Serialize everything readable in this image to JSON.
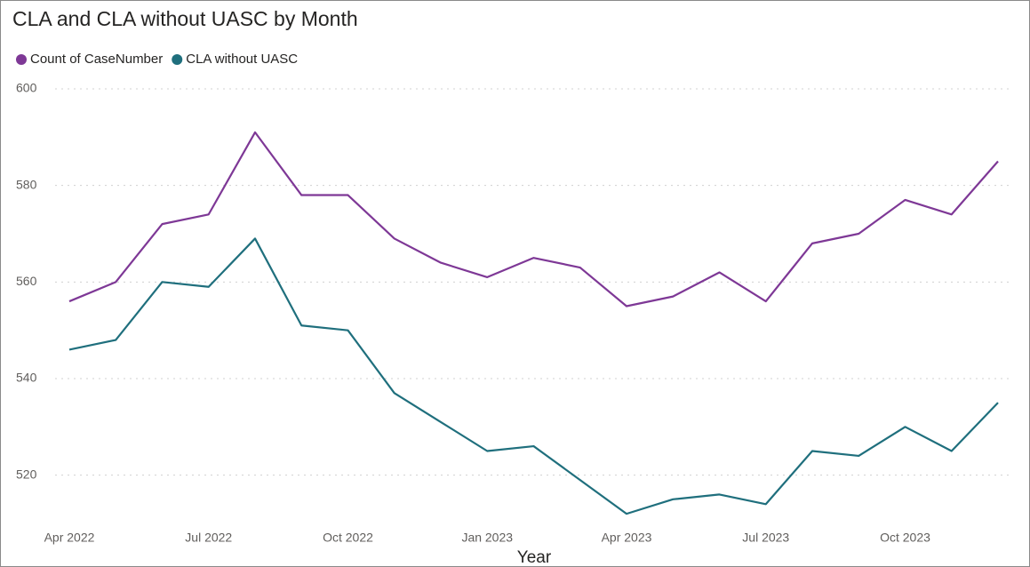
{
  "chart_data": {
    "type": "line",
    "title": "CLA and CLA without UASC by Month",
    "x_label": "Year",
    "categories": [
      "Apr 2022",
      null,
      null,
      "Jul 2022",
      null,
      null,
      "Oct 2022",
      null,
      null,
      "Jan 2023",
      null,
      null,
      "Apr 2023",
      null,
      null,
      "Jul 2023",
      null,
      null,
      "Oct 2023",
      null,
      null
    ],
    "series": [
      {
        "name": "Count of CaseNumber",
        "color": "#7e3896",
        "values": [
          556,
          560,
          572,
          574,
          591,
          578,
          578,
          569,
          564,
          561,
          565,
          563,
          555,
          557,
          562,
          556,
          568,
          570,
          577,
          574,
          585
        ]
      },
      {
        "name": "CLA without UASC",
        "color": "#1f6f7d",
        "values": [
          546,
          548,
          560,
          559,
          569,
          551,
          550,
          537,
          531,
          525,
          526,
          519,
          512,
          515,
          516,
          514,
          525,
          524,
          530,
          525,
          535
        ]
      }
    ],
    "ylim": [
      510,
      600
    ],
    "yticks": [
      520,
      540,
      560,
      580,
      600
    ],
    "grid": true,
    "legend": "top-left"
  }
}
